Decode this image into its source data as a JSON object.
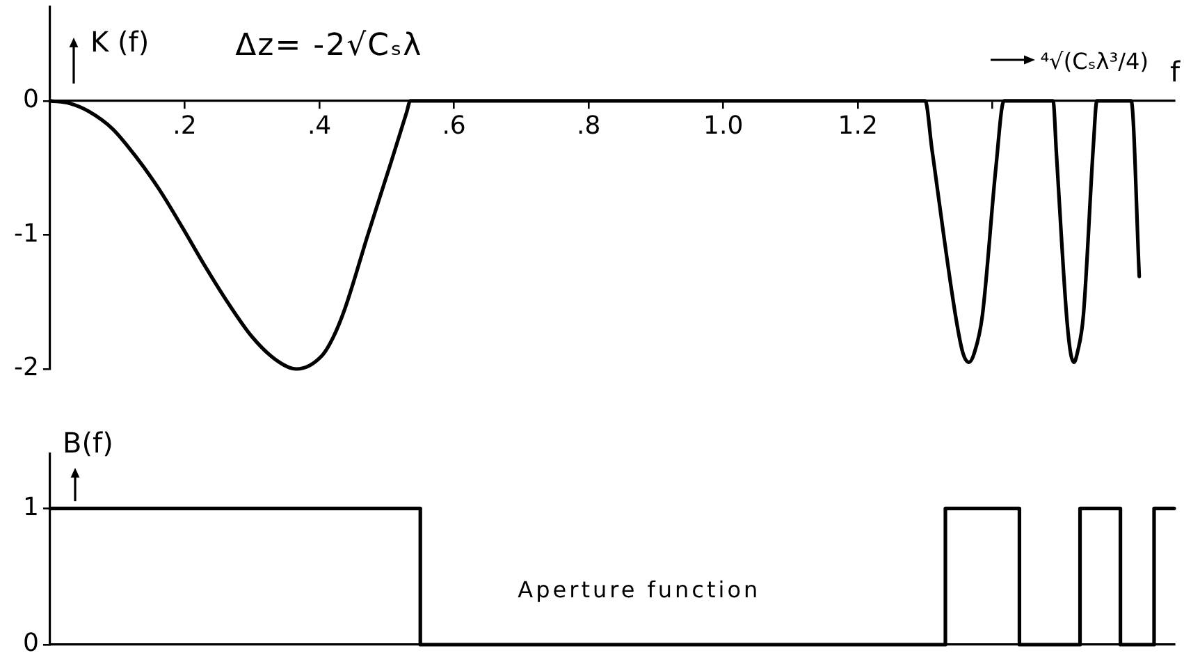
{
  "chart_data": [
    {
      "type": "line",
      "x": [
        0,
        0.03,
        0.058,
        0.093,
        0.128,
        0.162,
        0.196,
        0.231,
        0.266,
        0.3,
        0.335,
        0.366,
        0.404,
        0.42,
        0.438,
        0.472,
        0.507,
        0.53,
        0.535,
        1.3,
        1.31,
        1.345,
        1.356,
        1.365,
        1.373,
        1.385,
        1.405,
        1.417,
        1.49,
        1.495,
        1.51,
        1.516,
        1.521,
        1.526,
        1.535,
        1.55,
        1.555,
        1.606,
        1.618
      ],
      "values": [
        0,
        -0.02,
        -0.08,
        -0.21,
        -0.42,
        -0.66,
        -0.94,
        -1.24,
        -1.52,
        -1.76,
        -1.93,
        -2,
        -1.9,
        -1.77,
        -1.55,
        -1,
        -0.45,
        -0.08,
        0,
        0,
        -0.36,
        -1.6,
        -1.88,
        -1.95,
        -1.88,
        -1.6,
        -0.5,
        0,
        0,
        -0.4,
        -1.6,
        -1.88,
        -1.95,
        -1.88,
        -1.6,
        -0.32,
        0,
        0,
        -1.31
      ],
      "color": "#000000",
      "xlim": [
        0,
        1.67
      ],
      "xticks": [
        {
          "value": 0.2,
          "label": ".2"
        },
        {
          "value": 0.4,
          "label": ".4"
        },
        {
          "value": 0.6,
          "label": ".6"
        },
        {
          "value": 0.8,
          "label": ".8"
        },
        {
          "value": 1,
          "label": "1.0"
        },
        1.2,
        {
          "value": 1.4,
          "label": null
        }
      ],
      "ylim": [
        -2,
        0.7
      ],
      "yticks": [
        -2,
        -1,
        0
      ],
      "xlabel": "f",
      "ylabel": "K (f)",
      "annotations": [
        "Δz= -2√Cₛλ",
        {
          "text": "⁴√(Cₛλ³/4)",
          "x": 1.5,
          "y": 0
        }
      ],
      "grid": false
    },
    {
      "type": "step",
      "x": [
        0,
        0.55,
        1.33,
        1.44,
        1.53,
        1.59,
        1.64,
        1.67
      ],
      "values": [
        1,
        0,
        1,
        0,
        1,
        0,
        1,
        1
      ],
      "color": "#000000",
      "xlim": [
        0,
        1.67
      ],
      "ylim": [
        0,
        1.4
      ],
      "yticks": [
        0,
        1
      ],
      "ylabel": "B(f)",
      "annotations": [
        "Aperture function"
      ],
      "tick_labels": "y",
      "grid": false
    }
  ]
}
